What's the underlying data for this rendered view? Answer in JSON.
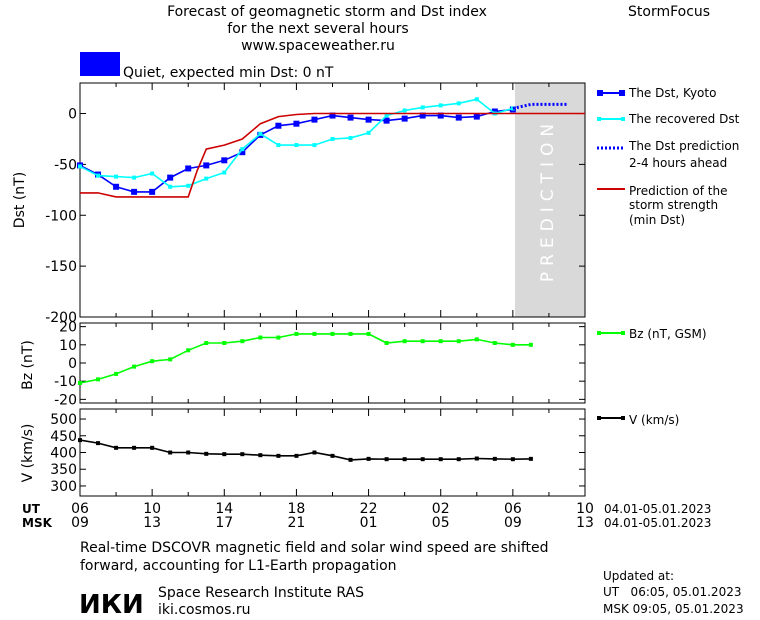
{
  "header": {
    "title_line1": "Forecast of geomagnetic storm and Dst index",
    "title_line2": "for the next several hours",
    "url": "www.spaceweather.ru",
    "brand": "StormFocus",
    "status_text": "Quiet, expected min Dst: 0 nT",
    "status_color": "#0000ff"
  },
  "legend": {
    "dst_kyoto": "The Dst, Kyoto",
    "dst_recovered": "The recovered Dst",
    "dst_prediction_l1": "The Dst prediction",
    "dst_prediction_l2": "2-4 hours ahead",
    "storm_l1": "Prediction of the",
    "storm_l2": "storm strength",
    "storm_l3": "(min Dst)",
    "bz": "Bz (nT, GSM)",
    "v": "V (km/s)"
  },
  "prediction_label": "PREDICTION",
  "time_axis": {
    "ut_label": "UT",
    "msk_label": "MSK",
    "ut_ticks": [
      "06",
      "10",
      "14",
      "18",
      "22",
      "02",
      "06",
      "10"
    ],
    "msk_ticks": [
      "09",
      "13",
      "17",
      "21",
      "01",
      "05",
      "09",
      "13"
    ],
    "date_range_ut": "04.01-05.01.2023",
    "date_range_msk": "04.01-05.01.2023"
  },
  "footer": {
    "note_line1": "Real-time DSCOVR magnetic field and solar wind speed are shifted",
    "note_line2": "forward, accounting for L1-Earth propagation",
    "logo_text": "ИКИ",
    "institute": "Space Research Institute RAS",
    "site": "iki.cosmos.ru",
    "updated_label": "Updated at:",
    "updated_ut": "UT   06:05, 05.01.2023",
    "updated_msk": "MSK 09:05, 05.01.2023"
  },
  "chart_data": [
    {
      "type": "line",
      "ylabel": "Dst (nT)",
      "ylim": [
        -200,
        30
      ],
      "yticks": [
        0,
        -50,
        -100,
        -150,
        -200
      ],
      "xlim": [
        6,
        34
      ],
      "prediction_start": 30,
      "series": [
        {
          "name": "The Dst, Kyoto",
          "color": "#0000ff",
          "x": [
            6,
            7,
            8,
            9,
            10,
            11,
            12,
            13,
            14,
            15,
            16,
            17,
            18,
            19,
            20,
            21,
            22,
            23,
            24,
            25,
            26,
            27,
            28,
            29,
            30
          ],
          "y": [
            -51,
            -60,
            -72,
            -77,
            -77,
            -63,
            -54,
            -51,
            -46,
            -38,
            -21,
            -12,
            -10,
            -6,
            -2,
            -4,
            -6,
            -7,
            -5,
            -2,
            -2,
            -4,
            -3,
            2,
            4
          ]
        },
        {
          "name": "The recovered Dst",
          "color": "#00ffff",
          "x": [
            6,
            7,
            8,
            9,
            10,
            11,
            12,
            13,
            14,
            15,
            16,
            17,
            18,
            19,
            20,
            21,
            22,
            23,
            24,
            25,
            26,
            27,
            28,
            29,
            30
          ],
          "y": [
            -52,
            -61,
            -62,
            -63,
            -59,
            -72,
            -71,
            -64,
            -58,
            -35,
            -20,
            -31,
            -31,
            -31,
            -25,
            -24,
            -19,
            -2,
            3,
            6,
            8,
            10,
            14,
            0,
            5
          ]
        },
        {
          "name": "The Dst prediction",
          "color": "#0000ff",
          "x": [
            30,
            31,
            32,
            33
          ],
          "y": [
            5,
            9,
            9,
            9
          ]
        },
        {
          "name": "Prediction of the storm strength",
          "color": "#cc0000",
          "x": [
            6,
            7,
            8,
            9,
            10,
            11,
            12,
            12.5,
            13,
            14,
            15,
            16,
            17,
            18,
            19,
            20,
            21,
            22,
            23,
            24,
            25,
            26,
            27,
            28,
            29,
            30,
            31,
            32,
            34
          ],
          "y": [
            -78,
            -78,
            -82,
            -82,
            -82,
            -82,
            -82,
            -56,
            -35,
            -31,
            -25,
            -10,
            -3,
            -1,
            0,
            0,
            0,
            0,
            0,
            0,
            0,
            0,
            0,
            0,
            0,
            0,
            0,
            0,
            0
          ]
        }
      ]
    },
    {
      "type": "line",
      "ylabel": "Bz (nT)",
      "ylim": [
        -22,
        22
      ],
      "yticks": [
        20,
        10,
        0,
        -10,
        -20
      ],
      "xlim": [
        6,
        34
      ],
      "series": [
        {
          "name": "Bz (nT, GSM)",
          "color": "#00ff00",
          "x": [
            6,
            7,
            8,
            9,
            10,
            11,
            12,
            13,
            14,
            15,
            16,
            17,
            18,
            19,
            20,
            21,
            22,
            23,
            24,
            25,
            26,
            27,
            28,
            29,
            30,
            31
          ],
          "y": [
            -11,
            -9,
            -6,
            -2,
            1,
            2,
            7,
            11,
            11,
            12,
            14,
            14,
            16,
            16,
            16,
            16,
            16,
            11,
            12,
            12,
            12,
            12,
            13,
            11,
            10,
            10
          ]
        }
      ]
    },
    {
      "type": "line",
      "ylabel": "V (km/s)",
      "ylim": [
        270,
        530
      ],
      "yticks": [
        500,
        450,
        400,
        350,
        300
      ],
      "xlim": [
        6,
        34
      ],
      "series": [
        {
          "name": "V (km/s)",
          "color": "#000000",
          "x": [
            6,
            7,
            8,
            9,
            10,
            11,
            12,
            13,
            14,
            15,
            16,
            17,
            18,
            19,
            20,
            21,
            22,
            23,
            24,
            25,
            26,
            27,
            28,
            29,
            30,
            31
          ],
          "y": [
            437,
            428,
            414,
            414,
            414,
            400,
            400,
            396,
            395,
            395,
            392,
            390,
            390,
            400,
            390,
            378,
            381,
            380,
            380,
            380,
            380,
            380,
            382,
            381,
            380,
            381
          ]
        }
      ]
    }
  ]
}
